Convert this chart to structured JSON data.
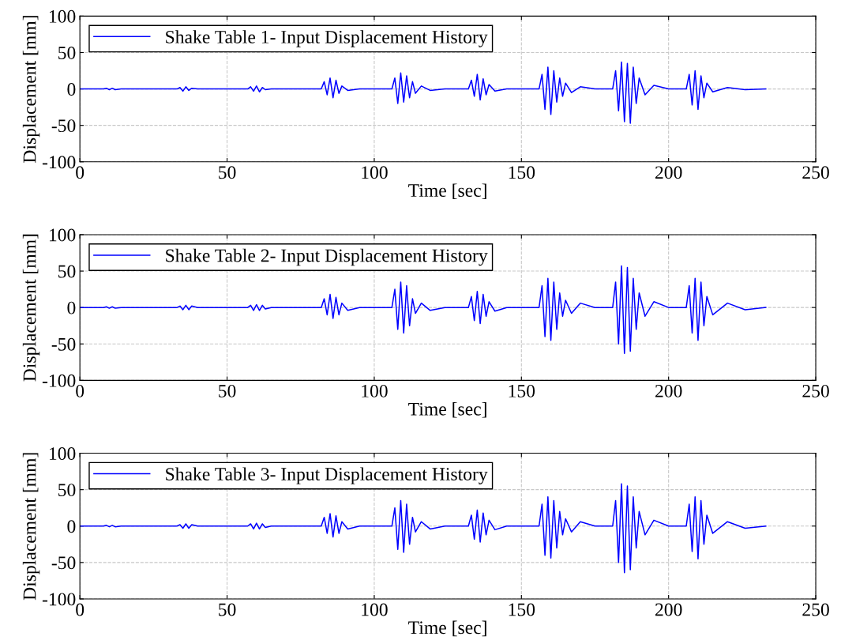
{
  "chart_data": [
    {
      "type": "line",
      "xlabel": "Time [sec]",
      "ylabel": "Displacement [mm]",
      "xlim": [
        0,
        250
      ],
      "ylim": [
        -100,
        100
      ],
      "xticks": [
        0,
        50,
        100,
        150,
        200,
        250
      ],
      "yticks": [
        -100,
        -50,
        0,
        50,
        100
      ],
      "grid": true,
      "legend": "top left",
      "line_style": "solid",
      "x": [
        0,
        8,
        9,
        10,
        11,
        12,
        14,
        33,
        34,
        35,
        36,
        37,
        38,
        40,
        57,
        58,
        59,
        60,
        61,
        62,
        63,
        65,
        82,
        83,
        84,
        85,
        86,
        87,
        88,
        89,
        91,
        95,
        106,
        107,
        108,
        109,
        110,
        111,
        112,
        113,
        114,
        116,
        119,
        124,
        132,
        133,
        134,
        135,
        136,
        137,
        138,
        139,
        141,
        145,
        156,
        157,
        158,
        159,
        160,
        161,
        162,
        163,
        164,
        165,
        167,
        170,
        175,
        181,
        182,
        183,
        184,
        185,
        186,
        187,
        188,
        189,
        190,
        192,
        195,
        200,
        206,
        207,
        208,
        209,
        210,
        211,
        212,
        213,
        215,
        220,
        226,
        233
      ],
      "series": [
        {
          "name": "Shake Table 1- Input Displacement History",
          "color": "#0000ff",
          "values": [
            0,
            0,
            1,
            -1,
            1,
            -1,
            0,
            0,
            2,
            -3,
            3,
            -2,
            1,
            0,
            0,
            3,
            -3,
            4,
            -4,
            2,
            -1,
            0,
            0,
            10,
            -8,
            15,
            -12,
            12,
            -6,
            4,
            -2,
            0,
            0,
            15,
            -20,
            22,
            -18,
            18,
            -12,
            10,
            -6,
            4,
            -2,
            0,
            0,
            12,
            -10,
            20,
            -15,
            14,
            -8,
            6,
            -3,
            0,
            0,
            20,
            -28,
            30,
            -35,
            25,
            -18,
            15,
            -10,
            8,
            -5,
            3,
            0,
            0,
            25,
            -30,
            37,
            -45,
            35,
            -47,
            30,
            -20,
            15,
            -8,
            5,
            0,
            0,
            20,
            -22,
            25,
            -28,
            18,
            -12,
            8,
            -4,
            2,
            -1,
            0
          ]
        }
      ]
    },
    {
      "type": "line",
      "xlabel": "Time [sec]",
      "ylabel": "Displacement [mm]",
      "xlim": [
        0,
        250
      ],
      "ylim": [
        -100,
        100
      ],
      "xticks": [
        0,
        50,
        100,
        150,
        200,
        250
      ],
      "yticks": [
        -100,
        -50,
        0,
        50,
        100
      ],
      "grid": true,
      "legend": "top left",
      "line_style": "solid",
      "x": [
        0,
        8,
        9,
        10,
        11,
        12,
        14,
        33,
        34,
        35,
        36,
        37,
        38,
        40,
        57,
        58,
        59,
        60,
        61,
        62,
        63,
        65,
        82,
        83,
        84,
        85,
        86,
        87,
        88,
        89,
        91,
        95,
        106,
        107,
        108,
        109,
        110,
        111,
        112,
        113,
        114,
        116,
        119,
        124,
        132,
        133,
        134,
        135,
        136,
        137,
        138,
        139,
        141,
        145,
        156,
        157,
        158,
        159,
        160,
        161,
        162,
        163,
        164,
        165,
        167,
        170,
        175,
        181,
        182,
        183,
        184,
        185,
        186,
        187,
        188,
        189,
        190,
        192,
        195,
        200,
        206,
        207,
        208,
        209,
        210,
        211,
        212,
        213,
        215,
        220,
        226,
        233
      ],
      "series": [
        {
          "name": "Shake Table 2- Input Displacement History",
          "color": "#0000ff",
          "values": [
            0,
            0,
            1,
            -1,
            1,
            -1,
            0,
            0,
            2,
            -3,
            3,
            -3,
            2,
            0,
            0,
            3,
            -4,
            4,
            -4,
            3,
            -2,
            0,
            0,
            12,
            -10,
            18,
            -15,
            14,
            -10,
            6,
            -4,
            0,
            0,
            25,
            -30,
            35,
            -35,
            30,
            -25,
            12,
            -8,
            6,
            -4,
            0,
            0,
            15,
            -18,
            22,
            -22,
            18,
            -12,
            8,
            -5,
            0,
            0,
            30,
            -40,
            40,
            -45,
            35,
            -30,
            20,
            -12,
            10,
            -8,
            6,
            0,
            0,
            35,
            -50,
            57,
            -63,
            55,
            -60,
            40,
            -30,
            20,
            -12,
            8,
            0,
            0,
            30,
            -35,
            40,
            -45,
            35,
            -25,
            15,
            -10,
            6,
            -3,
            0
          ]
        }
      ]
    },
    {
      "type": "line",
      "xlabel": "Time [sec]",
      "ylabel": "Displacement [mm]",
      "xlim": [
        0,
        250
      ],
      "ylim": [
        -100,
        100
      ],
      "xticks": [
        0,
        50,
        100,
        150,
        200,
        250
      ],
      "yticks": [
        -100,
        -50,
        0,
        50,
        100
      ],
      "grid": true,
      "legend": "top left",
      "line_style": "solid",
      "x": [
        0,
        8,
        9,
        10,
        11,
        12,
        14,
        33,
        34,
        35,
        36,
        37,
        38,
        40,
        57,
        58,
        59,
        60,
        61,
        62,
        63,
        65,
        82,
        83,
        84,
        85,
        86,
        87,
        88,
        89,
        91,
        95,
        106,
        107,
        108,
        109,
        110,
        111,
        112,
        113,
        114,
        116,
        119,
        124,
        132,
        133,
        134,
        135,
        136,
        137,
        138,
        139,
        141,
        145,
        156,
        157,
        158,
        159,
        160,
        161,
        162,
        163,
        164,
        165,
        167,
        170,
        175,
        181,
        182,
        183,
        184,
        185,
        186,
        187,
        188,
        189,
        190,
        192,
        195,
        200,
        206,
        207,
        208,
        209,
        210,
        211,
        212,
        213,
        215,
        220,
        226,
        233
      ],
      "series": [
        {
          "name": "Shake Table 3- Input Displacement History",
          "color": "#0000ff",
          "values": [
            0,
            0,
            1,
            -1,
            1,
            -1,
            0,
            0,
            2,
            -3,
            3,
            -3,
            2,
            0,
            0,
            3,
            -4,
            4,
            -4,
            3,
            -2,
            0,
            0,
            12,
            -10,
            17,
            -15,
            14,
            -10,
            6,
            -4,
            0,
            0,
            25,
            -32,
            35,
            -36,
            30,
            -25,
            12,
            -8,
            6,
            -4,
            0,
            0,
            15,
            -18,
            22,
            -22,
            18,
            -12,
            8,
            -5,
            0,
            0,
            30,
            -40,
            40,
            -44,
            35,
            -30,
            20,
            -12,
            10,
            -8,
            6,
            0,
            0,
            35,
            -50,
            58,
            -64,
            55,
            -60,
            40,
            -30,
            20,
            -12,
            8,
            0,
            0,
            30,
            -35,
            40,
            -45,
            35,
            -25,
            15,
            -10,
            6,
            -3,
            0
          ]
        }
      ]
    }
  ]
}
